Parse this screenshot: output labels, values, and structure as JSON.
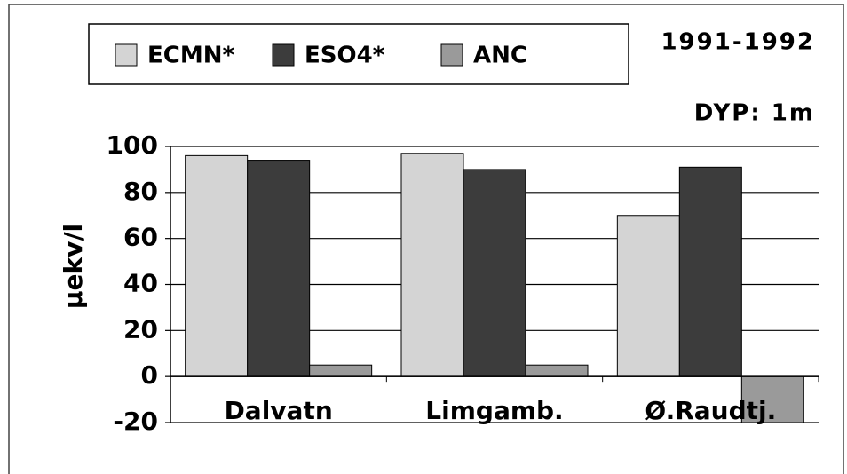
{
  "chart_data": {
    "type": "bar",
    "annotations": [
      "1991-1992",
      "DYP: 1m"
    ],
    "y_label": "µekv/l",
    "categories": [
      "Dalvatn",
      "Limgamb.",
      "Ø.Raudtj."
    ],
    "series": [
      {
        "name": "ECMN*",
        "color": "#d4d4d4",
        "values": [
          96,
          97,
          70
        ]
      },
      {
        "name": "ESO4*",
        "color": "#3c3c3c",
        "values": [
          94,
          90,
          91
        ]
      },
      {
        "name": "ANC",
        "color": "#9a9a9a",
        "values": [
          5,
          5,
          -20
        ]
      }
    ],
    "ylim": [
      -20,
      100
    ],
    "yticks": [
      -20,
      0,
      20,
      40,
      60,
      80,
      100
    ],
    "grid": true
  }
}
